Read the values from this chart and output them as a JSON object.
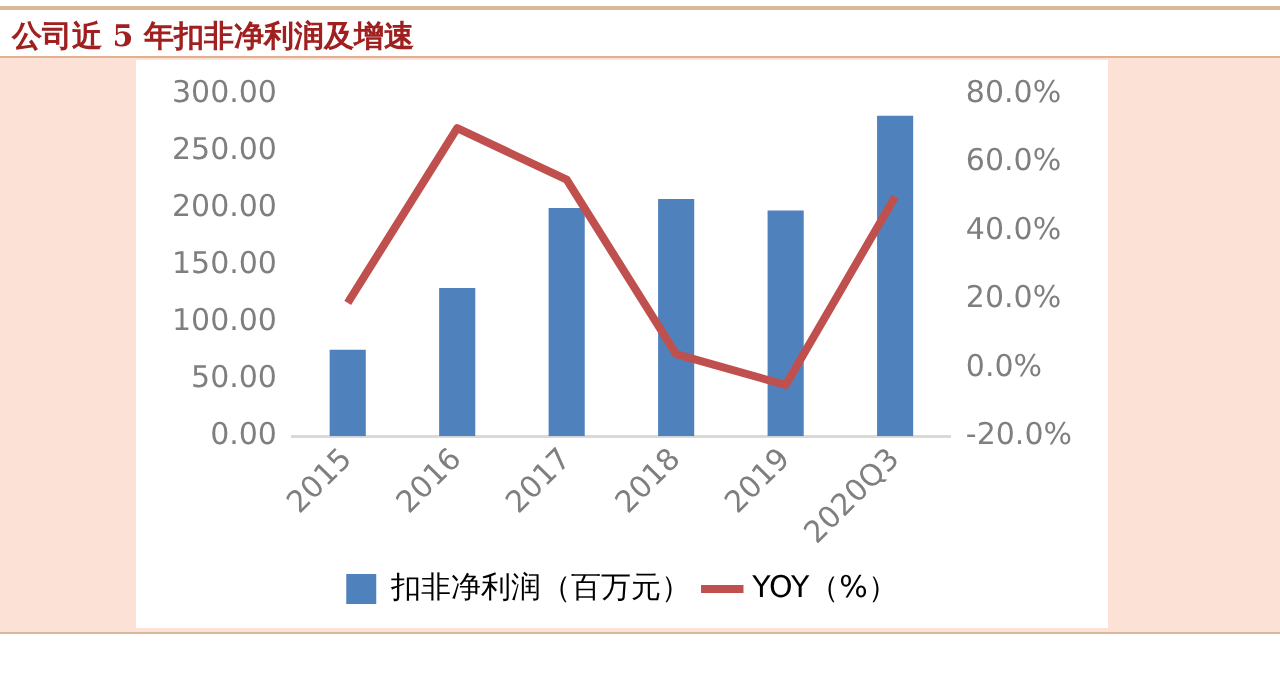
{
  "chart_data": {
    "type": "bar",
    "title": "公司近 5 年扣非净利润及增速",
    "categories": [
      "2015",
      "2016",
      "2017",
      "2018",
      "2019",
      "2020Q3"
    ],
    "series": [
      {
        "name": "扣非净利润（百万元）",
        "color": "#4f81bd",
        "values": [
          76,
          130,
          200,
          208,
          198,
          281
        ]
      },
      {
        "name": "YOY（%）",
        "type": "line",
        "axis": "y2",
        "color": "#c0504d",
        "values": [
          19,
          70,
          55,
          4,
          -5,
          50
        ]
      }
    ],
    "ylim": [
      0,
      300
    ],
    "yticks": [
      {
        "value": 0,
        "label": "0.00"
      },
      {
        "value": 50,
        "label": "50.00"
      },
      {
        "value": 100,
        "label": "100.00"
      },
      {
        "value": 150,
        "label": "150.00"
      },
      {
        "value": 200,
        "label": "200.00"
      },
      {
        "value": 250,
        "label": "250.00"
      },
      {
        "value": 300,
        "label": "300.00"
      }
    ],
    "y2lim": [
      -20,
      80
    ],
    "y2ticks": [
      {
        "value": -20,
        "label": "-20.0%"
      },
      {
        "value": 0,
        "label": "0.0%"
      },
      {
        "value": 20,
        "label": "20.0%"
      },
      {
        "value": 40,
        "label": "40.0%"
      },
      {
        "value": 60,
        "label": "60.0%"
      },
      {
        "value": 80,
        "label": "80.0%"
      }
    ],
    "grid": false,
    "legend": "bottom"
  }
}
